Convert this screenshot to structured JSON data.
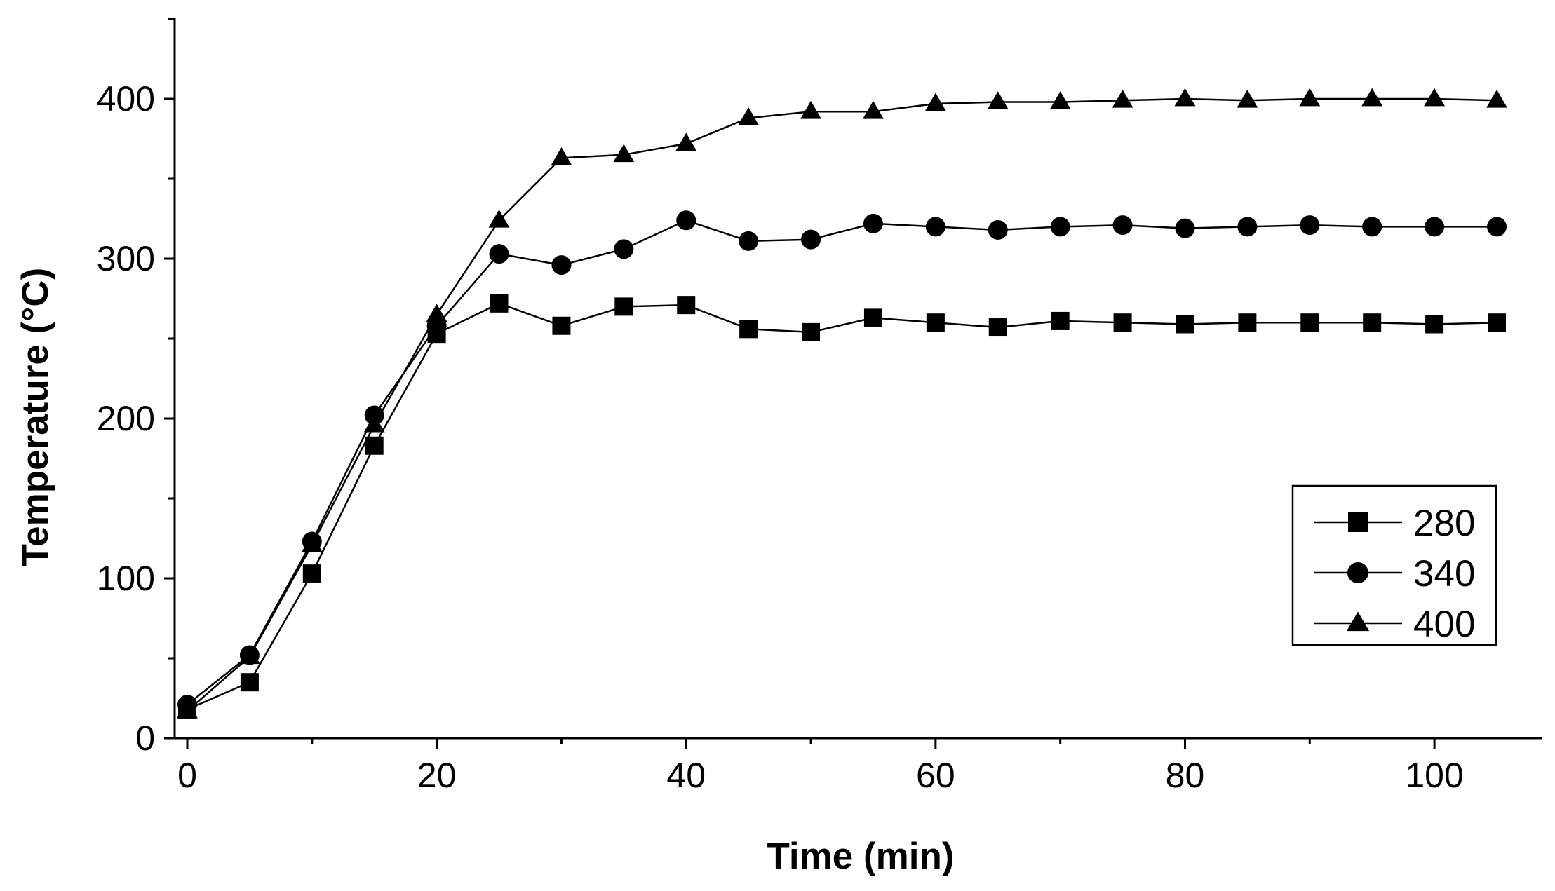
{
  "chart_data": {
    "type": "line",
    "title": "",
    "xlabel": "Time (min)",
    "ylabel": "Temperature (°C)",
    "xlim": [
      -1,
      108
    ],
    "ylim": [
      0,
      450
    ],
    "xticks": [
      0,
      20,
      40,
      60,
      80,
      100
    ],
    "yticks": [
      0,
      100,
      200,
      300,
      400
    ],
    "grid": false,
    "legend_position": "right-bottom",
    "x": [
      0,
      5,
      10,
      15,
      20,
      25,
      30,
      35,
      40,
      45,
      50,
      55,
      60,
      65,
      70,
      75,
      80,
      85,
      90,
      95,
      100,
      105
    ],
    "series": [
      {
        "name": "280",
        "marker": "square",
        "values": [
          18,
          35,
          103,
          183,
          253,
          272,
          258,
          270,
          271,
          256,
          254,
          263,
          260,
          257,
          261,
          260,
          259,
          260,
          260,
          260,
          259,
          260
        ]
      },
      {
        "name": "340",
        "marker": "circle",
        "values": [
          21,
          52,
          123,
          202,
          258,
          303,
          296,
          306,
          324,
          311,
          312,
          322,
          320,
          318,
          320,
          321,
          319,
          320,
          321,
          320,
          320,
          320
        ]
      },
      {
        "name": "400",
        "marker": "triangle",
        "values": [
          17,
          51,
          121,
          196,
          265,
          324,
          363,
          365,
          372,
          388,
          392,
          392,
          397,
          398,
          398,
          399,
          400,
          399,
          400,
          400,
          400,
          399
        ]
      }
    ],
    "colors": {
      "line": "#000000",
      "marker": "#000000",
      "background": "#ffffff"
    }
  }
}
